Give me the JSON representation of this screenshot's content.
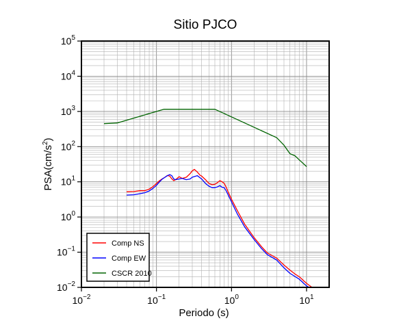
{
  "chart_data": {
    "type": "line",
    "title": "Sitio PJCO",
    "xlabel": "Periodo (s)",
    "ylabel": "PSA(cm/s²)",
    "ylabel_parts": {
      "pre": "PSA(cm/s",
      "sup": "2",
      "post": ")"
    },
    "x_scale": "log",
    "y_scale": "log",
    "xlim": [
      0.01,
      20
    ],
    "ylim": [
      0.01,
      100000
    ],
    "grid": true,
    "legend_position": "bottom-left",
    "x_ticks": [
      {
        "value": 0.01,
        "base": "10",
        "exp": "−2"
      },
      {
        "value": 0.1,
        "base": "10",
        "exp": "−1"
      },
      {
        "value": 1,
        "base": "10",
        "exp": "0"
      },
      {
        "value": 10,
        "base": "10",
        "exp": "1"
      }
    ],
    "y_ticks": [
      {
        "value": 0.01,
        "base": "10",
        "exp": "−2"
      },
      {
        "value": 0.1,
        "base": "10",
        "exp": "−1"
      },
      {
        "value": 1,
        "base": "10",
        "exp": "0"
      },
      {
        "value": 10,
        "base": "10",
        "exp": "1"
      },
      {
        "value": 100,
        "base": "10",
        "exp": "2"
      },
      {
        "value": 1000,
        "base": "10",
        "exp": "3"
      },
      {
        "value": 10000,
        "base": "10",
        "exp": "4"
      },
      {
        "value": 100000,
        "base": "10",
        "exp": "5"
      }
    ],
    "series": [
      {
        "name": "Comp NS",
        "color": "#ff0000",
        "x": [
          0.04,
          0.05,
          0.06,
          0.07,
          0.08,
          0.09,
          0.1,
          0.11,
          0.12,
          0.13,
          0.14,
          0.15,
          0.16,
          0.17,
          0.18,
          0.2,
          0.22,
          0.25,
          0.28,
          0.3,
          0.32,
          0.35,
          0.38,
          0.4,
          0.45,
          0.5,
          0.55,
          0.6,
          0.65,
          0.7,
          0.75,
          0.8,
          0.85,
          0.9,
          1.0,
          1.2,
          1.5,
          2.0,
          2.5,
          3.0,
          4.0,
          5.0,
          6.0,
          7.0,
          8.0,
          10.0,
          12.0
        ],
        "y": [
          5.2,
          5.3,
          5.6,
          5.6,
          6.2,
          7.3,
          9.0,
          10.8,
          12.2,
          13.5,
          15.2,
          14.5,
          12.2,
          10.8,
          11.5,
          14.0,
          12.5,
          13.5,
          17.0,
          20.5,
          22.5,
          19.0,
          15.5,
          14.5,
          11.5,
          9.0,
          8.3,
          8.5,
          9.5,
          10.8,
          10.0,
          9.0,
          7.0,
          5.2,
          3.2,
          1.5,
          0.62,
          0.26,
          0.145,
          0.095,
          0.068,
          0.043,
          0.031,
          0.024,
          0.02,
          0.013,
          0.0098
        ]
      },
      {
        "name": "Comp EW",
        "color": "#0000ff",
        "x": [
          0.04,
          0.05,
          0.06,
          0.07,
          0.08,
          0.09,
          0.1,
          0.11,
          0.12,
          0.13,
          0.14,
          0.15,
          0.16,
          0.17,
          0.18,
          0.2,
          0.22,
          0.25,
          0.28,
          0.3,
          0.35,
          0.4,
          0.45,
          0.5,
          0.55,
          0.6,
          0.65,
          0.7,
          0.75,
          0.8,
          0.85,
          0.9,
          1.0,
          1.2,
          1.5,
          2.0,
          2.5,
          3.0,
          4.0,
          5.0,
          6.0,
          8.0,
          10.0,
          11.0
        ],
        "y": [
          4.2,
          4.3,
          4.6,
          4.9,
          5.5,
          6.5,
          8.0,
          10.0,
          12.0,
          13.5,
          15.0,
          16.0,
          15.0,
          12.0,
          11.5,
          12.0,
          12.5,
          11.5,
          12.0,
          13.5,
          15.0,
          12.0,
          9.0,
          7.5,
          6.8,
          6.8,
          7.2,
          7.8,
          7.0,
          6.8,
          5.5,
          4.3,
          2.7,
          1.2,
          0.52,
          0.23,
          0.128,
          0.085,
          0.06,
          0.036,
          0.025,
          0.017,
          0.011,
          0.0098
        ]
      },
      {
        "name": "CSCR 2010",
        "color": "#006400",
        "x": [
          0.02,
          0.03,
          0.125,
          0.6,
          4.0,
          5.0,
          6.0,
          7.0,
          8.0,
          10.0
        ],
        "y": [
          450,
          470,
          1150,
          1150,
          180,
          110,
          63,
          55,
          42,
          27
        ]
      }
    ]
  }
}
